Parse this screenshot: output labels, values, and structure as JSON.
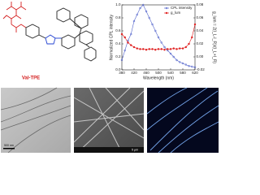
{
  "structure_label": "Val-TPE",
  "micrographs": [
    {
      "scale_label": "500 nm"
    },
    {
      "scale_label": "5 μm"
    }
  ],
  "chart_data": {
    "type": "line",
    "x_label": "Wavelength (nm)",
    "y_label": "Normalized CPL intensity",
    "y2_label": "g_lum = 2(I_L-I_R)/(I_L+I_R)",
    "x": [
      380,
      390,
      400,
      410,
      420,
      430,
      440,
      450,
      460,
      470,
      480,
      490,
      500,
      510,
      520,
      530,
      540,
      550,
      560,
      570,
      580,
      590,
      600,
      610,
      620
    ],
    "series": [
      {
        "name": "CPL intensity",
        "color": "#5566cc",
        "values": [
          0.15,
          0.3,
          0.45,
          0.55,
          0.75,
          0.85,
          0.95,
          1.0,
          0.9,
          0.8,
          0.7,
          0.6,
          0.5,
          0.42,
          0.35,
          0.3,
          0.25,
          0.2,
          0.15,
          0.12,
          0.1,
          0.08,
          0.06,
          0.05,
          0.04
        ]
      },
      {
        "name": "g_lum",
        "color": "#e02020",
        "axis": "y2",
        "values": [
          0.035,
          0.03,
          0.022,
          0.018,
          0.015,
          0.013,
          0.012,
          0.012,
          0.011,
          0.012,
          0.012,
          0.011,
          0.012,
          0.012,
          0.011,
          0.012,
          0.012,
          0.013,
          0.012,
          0.013,
          0.013,
          0.015,
          0.02,
          0.03,
          0.05
        ]
      }
    ],
    "xlim": [
      380,
      620
    ],
    "xticks": [
      380,
      420,
      460,
      500,
      540,
      580,
      620
    ],
    "ylim": [
      0,
      1
    ],
    "yticks": [
      {
        "value": 0,
        "label": "0.0"
      },
      {
        "value": 0.2,
        "label": "0.2"
      },
      {
        "value": 0.4,
        "label": "0.4"
      },
      {
        "value": 0.6,
        "label": "0.6"
      },
      {
        "value": 0.8,
        "label": "0.8"
      },
      {
        "value": 1,
        "label": "1.0"
      }
    ],
    "y2lim": [
      -0.02,
      0.08
    ],
    "y2ticks": [
      {
        "value": -0.02,
        "label": "-0.02"
      },
      {
        "value": 0,
        "label": "0.00"
      },
      {
        "value": 0.02,
        "label": "0.02"
      },
      {
        "value": 0.04,
        "label": "0.04"
      },
      {
        "value": 0.06,
        "label": "0.06"
      },
      {
        "value": 0.08,
        "label": "0.08"
      }
    ],
    "legend": "upper right"
  }
}
